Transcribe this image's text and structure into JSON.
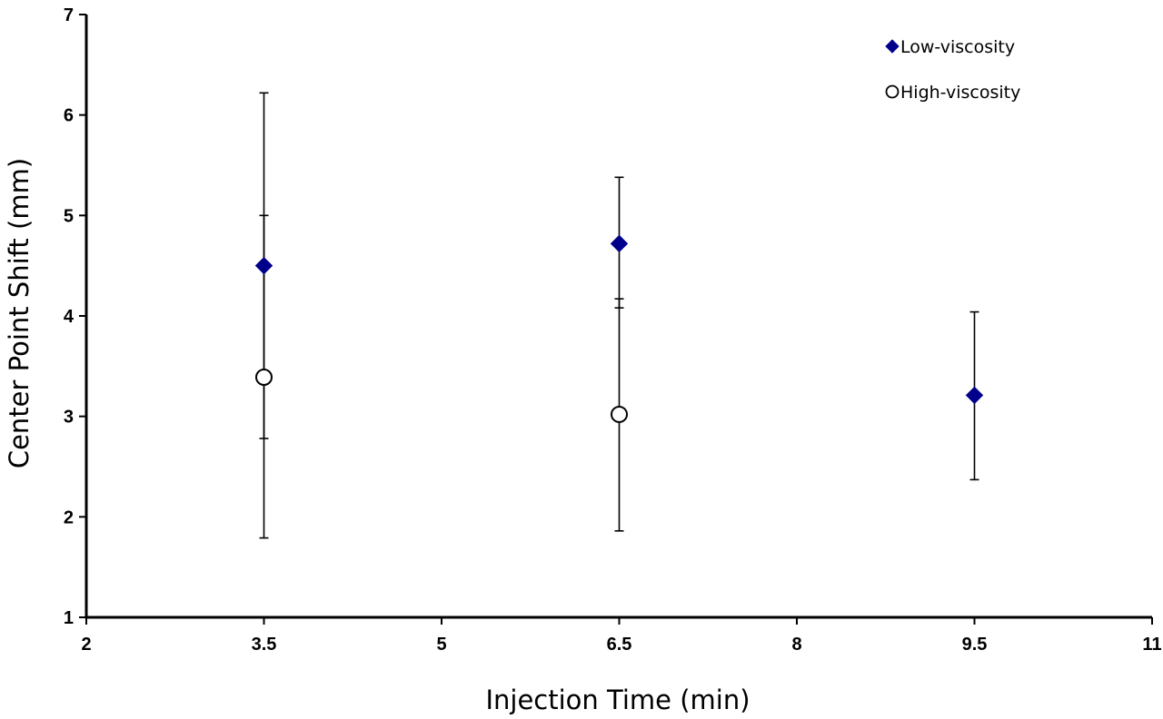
{
  "chart_data": {
    "type": "scatter",
    "title": "",
    "xlabel": "Injection Time (min)",
    "ylabel": "Center Point Shift (mm)",
    "xlim": [
      2,
      11
    ],
    "ylim": [
      1,
      7
    ],
    "xticks": [
      2,
      3.5,
      5,
      6.5,
      8,
      9.5,
      11
    ],
    "xtick_labels": [
      "2",
      "3.5",
      "5",
      "6.5",
      "8",
      "9.5",
      "11"
    ],
    "yticks": [
      1,
      2,
      3,
      4,
      5,
      6,
      7
    ],
    "ytick_labels": [
      "1",
      "2",
      "3",
      "4",
      "5",
      "6",
      "7"
    ],
    "grid": false,
    "legend_position": "top-right",
    "series": [
      {
        "name": "Low-viscosity",
        "marker": "filled-diamond",
        "color": "#00008b",
        "points": [
          {
            "x": 3.5,
            "y": 4.5,
            "err_low": 2.78,
            "err_high": 6.22
          },
          {
            "x": 6.5,
            "y": 4.72,
            "err_low": 4.08,
            "err_high": 5.38
          },
          {
            "x": 9.5,
            "y": 3.21,
            "err_low": 2.37,
            "err_high": 4.04
          }
        ]
      },
      {
        "name": "High-viscosity",
        "marker": "open-circle",
        "color": "#000000",
        "points": [
          {
            "x": 3.5,
            "y": 3.39,
            "err_low": 1.79,
            "err_high": 5.0
          },
          {
            "x": 6.5,
            "y": 3.02,
            "err_low": 1.86,
            "err_high": 4.17
          }
        ]
      }
    ]
  }
}
